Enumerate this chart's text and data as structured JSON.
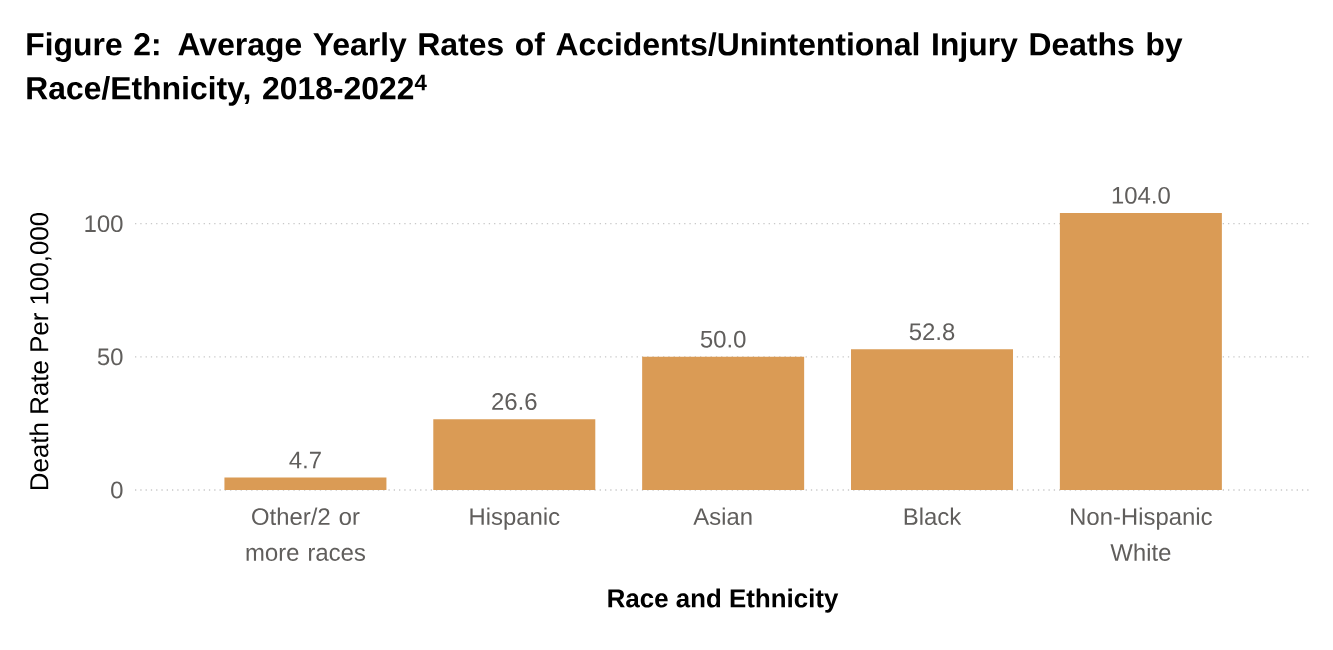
{
  "chart_data": {
    "type": "bar",
    "title": "Figure 2: Average Yearly Rates of Accidents/Unintentional Injury Deaths by Race/Ethnicity, 2018-2022$^{4}$",
    "xlabel": "Race and Ethnicity",
    "ylabel": "Death Rate Per 100,000",
    "categories": [
      "Other/2 or more races",
      "Hispanic",
      "Asian",
      "Black",
      "Non-Hispanic White"
    ],
    "values": [
      4.7,
      26.6,
      50.0,
      52.8,
      104.0
    ],
    "value_labels": [
      "4.7",
      "26.6",
      "50.0",
      "52.8",
      "104.0"
    ],
    "color": "#da9b55",
    "ylim": [
      0,
      104
    ],
    "yticks": [
      0,
      50,
      100
    ],
    "grid": "y"
  }
}
